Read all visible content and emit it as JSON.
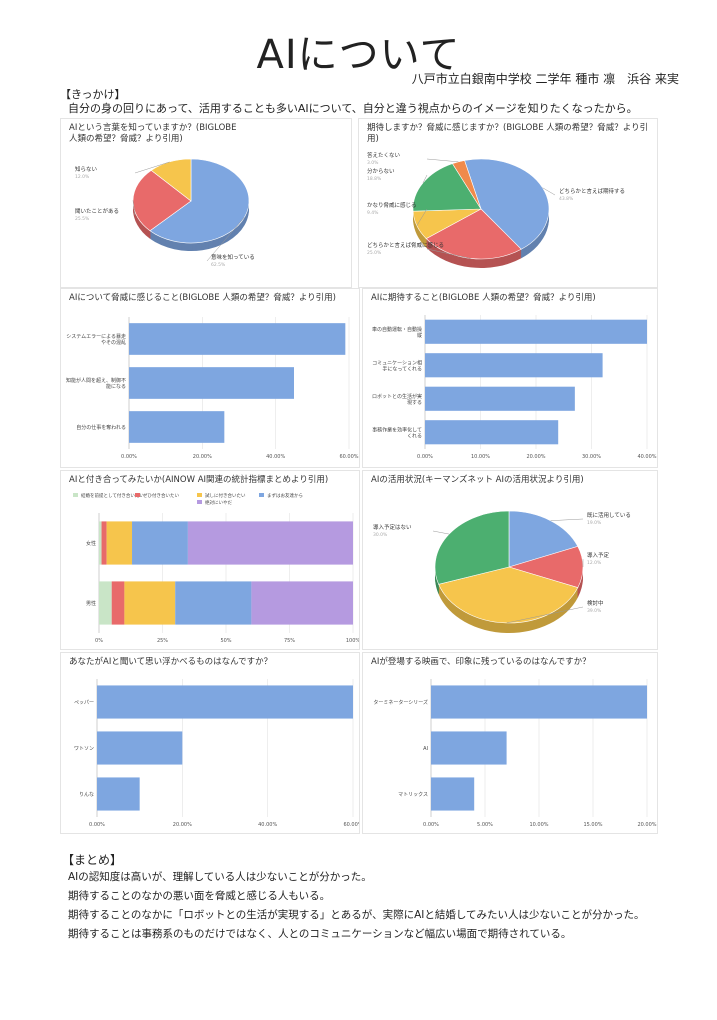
{
  "title": "AIについて",
  "author": "八戸市立白銀南中学校 二学年 種市 凛　浜谷 来実",
  "kikkake": {
    "heading": "【きっかけ】",
    "text": "自分の身の回りにあって、活用することも多いAIについて、自分と違う視点からのイメージを知りたくなったから。"
  },
  "summary": {
    "heading": "【まとめ】",
    "lines": [
      "AIの認知度は高いが、理解している人は少ないことが分かった。",
      "期待することのなかの悪い面を脅威と感じる人もいる。",
      "期待することのなかに「ロボットとの生活が実現する」とあるが、実際にAIと結婚してみたい人は少ないことが分かった。",
      "期待することは事務系のものだけではなく、人とのコミュニケーションなど幅広い場面で期待されている。"
    ]
  },
  "chart_data": [
    {
      "id": "c1",
      "type": "pie",
      "title": "AIという言葉を知っていますか？(BIGLOBE\n人類の希望？脅威？より引用)",
      "categories": [
        "意味を知っている",
        "聞いたことがある",
        "知らない"
      ],
      "values": [
        62.5,
        25.5,
        12.0
      ],
      "colors": [
        "#7ea6e0",
        "#e86a6a",
        "#f6c54c"
      ]
    },
    {
      "id": "c2",
      "type": "pie",
      "title": "期待しますか？脅威に感じますか？(BIGLOBE 人類の希望？脅威？より引用)",
      "categories": [
        "どちらかと言えば期待する",
        "どちらかと言えば脅威に感じる",
        "かなり脅威に感じる",
        "分からない",
        "答えたくない"
      ],
      "values": [
        43.8,
        25.0,
        9.4,
        18.8,
        3.0
      ],
      "colors": [
        "#7ea6e0",
        "#e86a6a",
        "#f6c54c",
        "#4caf70",
        "#f08a4b"
      ]
    },
    {
      "id": "c3",
      "type": "bar",
      "title": "AIについて脅威に感じること(BIGLOBE 人類の希望？脅威？より引用)",
      "categories": [
        "システムエラーによる暴走やその混乱",
        "知能が人間を超え、制御不能になる",
        "自分の仕事を奪われる"
      ],
      "values": [
        59.0,
        45.0,
        26.0
      ],
      "xlim": [
        0,
        60
      ],
      "ticks": [
        "0.00%",
        "20.00%",
        "40.00%",
        "60.00%"
      ]
    },
    {
      "id": "c4",
      "type": "bar",
      "title": "AIに期待すること(BIGLOBE 人類の希望？脅威？より引用)",
      "categories": [
        "車の自動運転・自動操縦",
        "コミュニケーション相手になってくれる",
        "ロボットとの生活が実現する",
        "事務作業を効率化してくれる"
      ],
      "values": [
        40.0,
        32.0,
        27.0,
        24.0
      ],
      "xlim": [
        0,
        40
      ],
      "ticks": [
        "0.00%",
        "10.00%",
        "20.00%",
        "30.00%",
        "40.00%"
      ]
    },
    {
      "id": "c5",
      "type": "bar",
      "stacked": true,
      "title": "AIと付き合ってみたいか(AINOW AI関連の統計指標まとめより引用)",
      "categories": [
        "女性",
        "男性"
      ],
      "series": [
        {
          "name": "結婚を前提として付き合いたい",
          "values": [
            1.0,
            5.0
          ],
          "color": "#c9e5c7"
        },
        {
          "name": "ぜひ付き合いたい",
          "values": [
            2.0,
            5.0
          ],
          "color": "#e86a6a"
        },
        {
          "name": "試しに付き合いたい",
          "values": [
            10.0,
            20.0
          ],
          "color": "#f6c54c"
        },
        {
          "name": "まずはお友達から",
          "values": [
            22.0,
            30.0
          ],
          "color": "#7ea6e0"
        },
        {
          "name": "絶対にいやだ",
          "values": [
            65.0,
            40.0
          ],
          "color": "#b59ae0"
        }
      ],
      "xlim": [
        0,
        100
      ],
      "ticks": [
        "0%",
        "25%",
        "50%",
        "75%",
        "100%"
      ]
    },
    {
      "id": "c6",
      "type": "pie",
      "title": "AIの活用状況(キーマンズネット AIの活用状況より引用)",
      "categories": [
        "既に活用している",
        "導入予定",
        "検討中",
        "導入予定はない"
      ],
      "values": [
        19.0,
        12.0,
        39.0,
        30.0
      ],
      "colors": [
        "#7ea6e0",
        "#e86a6a",
        "#f6c54c",
        "#4caf70"
      ]
    },
    {
      "id": "c7",
      "type": "bar",
      "title": "あなたがAIと聞いて思い浮かべるものはなんですか？",
      "categories": [
        "ペッパー",
        "ワトソン",
        "りんな"
      ],
      "values": [
        60.0,
        20.0,
        10.0
      ],
      "xlim": [
        0,
        60
      ],
      "ticks": [
        "0.00%",
        "20.00%",
        "40.00%",
        "60.00%"
      ]
    },
    {
      "id": "c8",
      "type": "bar",
      "title": "AIが登場する映画で、印象に残っているのはなんですか？",
      "categories": [
        "ターミネーターシリーズ",
        "AI",
        "マトリックス"
      ],
      "values": [
        20.0,
        7.0,
        4.0
      ],
      "xlim": [
        0,
        20
      ],
      "ticks": [
        "0.00%",
        "5.00%",
        "10.00%",
        "15.00%",
        "20.00%"
      ]
    }
  ]
}
